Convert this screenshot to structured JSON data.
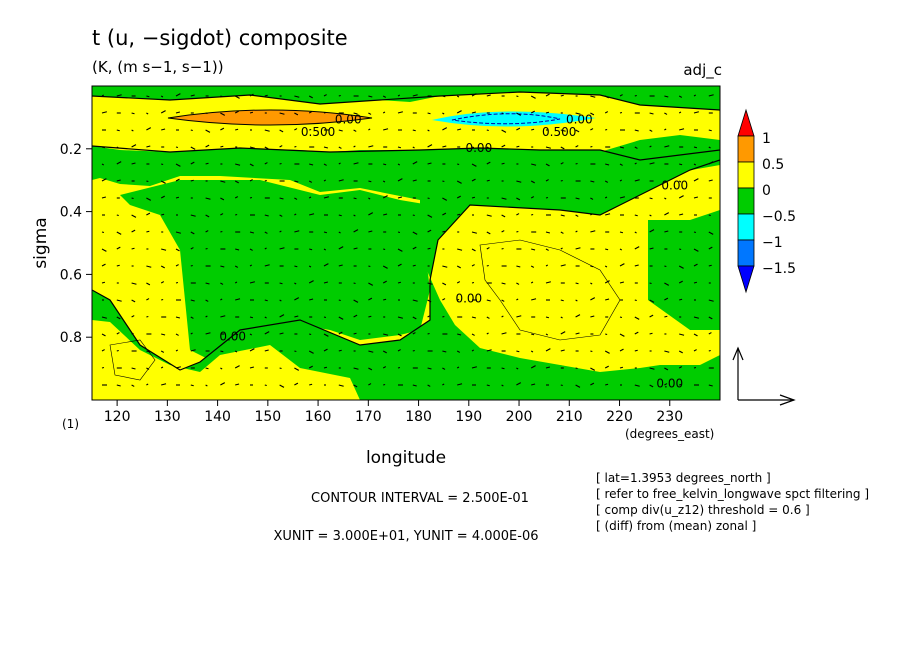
{
  "chart_data": {
    "type": "heatmap",
    "title": "t (u, −sigdot) composite",
    "units_line": "(K, (m s−1, s−1))",
    "run_name": "adj_c",
    "xlabel": "longitude",
    "xunit_label": "(degrees_east)",
    "ylabel": "sigma",
    "y_extra_label": "(1)",
    "xlim": [
      115,
      240
    ],
    "ylim": [
      1.0,
      0.0
    ],
    "x_ticks": [
      "120",
      "130",
      "140",
      "150",
      "160",
      "170",
      "180",
      "190",
      "200",
      "210",
      "220",
      "230"
    ],
    "y_ticks": [
      "0.2",
      "0.4",
      "0.6",
      "0.8"
    ],
    "colorbar": {
      "labels": [
        "1",
        "0.5",
        "0",
        "−0.5",
        "−1",
        "−1.5"
      ],
      "colors": [
        "#ff0000",
        "#ff9900",
        "#ffff00",
        "#00cc00",
        "#00ffff",
        "#0077ff",
        "#0000ff"
      ]
    },
    "contour_labels": [
      {
        "text": "0.00",
        "lon": 166,
        "sigma": 0.12
      },
      {
        "text": "0.500",
        "lon": 160,
        "sigma": 0.16
      },
      {
        "text": "0.00",
        "lon": 212,
        "sigma": 0.12
      },
      {
        "text": "0.500",
        "lon": 208,
        "sigma": 0.16
      },
      {
        "text": "0.00",
        "lon": 192,
        "sigma": 0.21
      },
      {
        "text": "0.00",
        "lon": 231,
        "sigma": 0.33
      },
      {
        "text": "0.00",
        "lon": 190,
        "sigma": 0.69
      },
      {
        "text": "0.00",
        "lon": 143,
        "sigma": 0.81
      },
      {
        "text": "0.00",
        "lon": 230,
        "sigma": 0.96
      }
    ],
    "contour_interval_text": "CONTOUR INTERVAL = 2.500E-01",
    "vector_units_text": "XUNIT = 3.000E+01, YUNIT = 4.000E-06",
    "notes": [
      "[ lat=1.3953 degrees_north ]",
      "[ refer to free_kelvin_longwave spct filtering ]",
      "[ comp div(u_z12) threshold = 0.6 ]",
      "[ (diff) from (mean) zonal ]"
    ]
  }
}
